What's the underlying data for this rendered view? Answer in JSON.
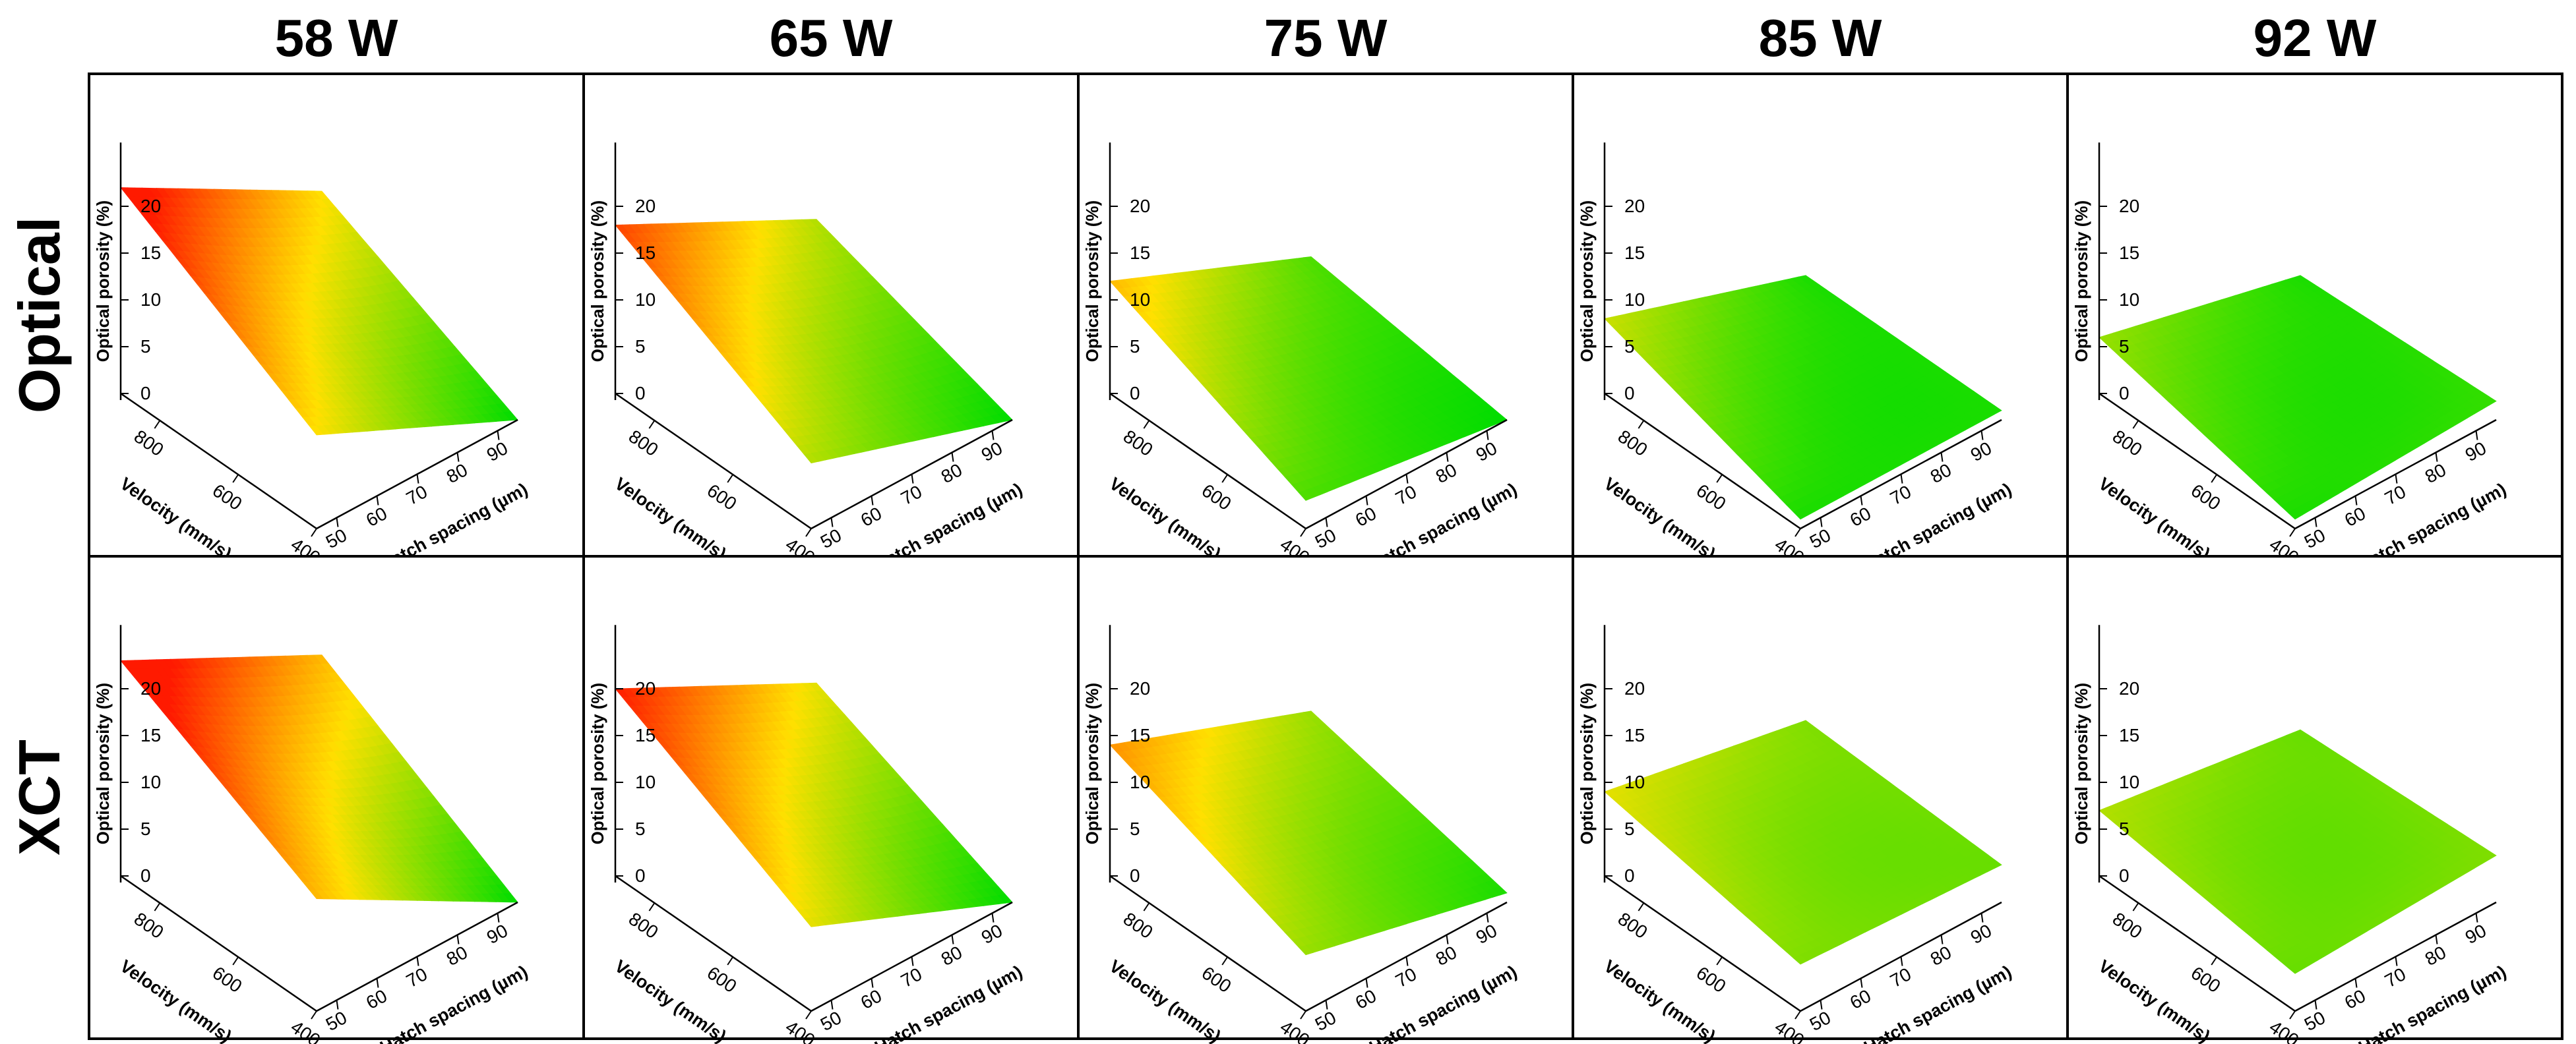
{
  "columns": [
    "58 W",
    "65 W",
    "75 W",
    "85 W",
    "92 W"
  ],
  "rows": [
    "Optical",
    "XCT"
  ],
  "colors": {
    "low": "#00dd00",
    "mid": "#ffe000",
    "high": "#ff1a00",
    "frame": "#000000"
  },
  "chart_data": {
    "type": "surface-grid",
    "x_label": "Hatch spacing (µm)",
    "x_ticks": [
      50,
      60,
      70,
      80,
      90
    ],
    "x_range": [
      45,
      95
    ],
    "y_label": "Velocity (mm/s)",
    "y_ticks": [
      400,
      600,
      800
    ],
    "y_range": [
      400,
      900
    ],
    "z_label": "Optical porosity (%)",
    "z_ticks": [
      0,
      5,
      10,
      15,
      20
    ],
    "z_range": [
      0,
      24
    ],
    "color_scale": "green-yellow-red",
    "panels": [
      {
        "row": "Optical",
        "column": "58 W",
        "corners": {
          "v900_h45": 22,
          "v900_h95": 10,
          "v400_h45": 10,
          "v400_h95": 0
        },
        "min": 0
      },
      {
        "row": "Optical",
        "column": "65 W",
        "corners": {
          "v900_h45": 18,
          "v900_h95": 7,
          "v400_h45": 7,
          "v400_h95": 0
        },
        "min": 0
      },
      {
        "row": "Optical",
        "column": "75 W",
        "corners": {
          "v900_h45": 12,
          "v900_h95": 3,
          "v400_h45": 3,
          "v400_h95": 0
        },
        "min": 0
      },
      {
        "row": "Optical",
        "column": "85 W",
        "corners": {
          "v900_h45": 8,
          "v900_h95": 1,
          "v400_h45": 1,
          "v400_h95": 1
        },
        "min": 0
      },
      {
        "row": "Optical",
        "column": "92 W",
        "corners": {
          "v900_h45": 6,
          "v900_h95": 1,
          "v400_h45": 1,
          "v400_h95": 2
        },
        "min": 0
      },
      {
        "row": "XCT",
        "column": "58 W",
        "corners": {
          "v900_h45": 23,
          "v900_h95": 12,
          "v400_h45": 12,
          "v400_h95": 0
        },
        "min": 0
      },
      {
        "row": "XCT",
        "column": "65 W",
        "corners": {
          "v900_h45": 20,
          "v900_h95": 9,
          "v400_h45": 9,
          "v400_h95": 0
        },
        "min": 0
      },
      {
        "row": "XCT",
        "column": "75 W",
        "corners": {
          "v900_h45": 14,
          "v900_h95": 6,
          "v400_h45": 6,
          "v400_h95": 1
        },
        "min": 0
      },
      {
        "row": "XCT",
        "column": "85 W",
        "corners": {
          "v900_h45": 9,
          "v900_h95": 5,
          "v400_h45": 5,
          "v400_h95": 4
        },
        "min": 0
      },
      {
        "row": "XCT",
        "column": "92 W",
        "corners": {
          "v900_h45": 7,
          "v900_h95": 4,
          "v400_h45": 4,
          "v400_h95": 5
        },
        "min": 0
      }
    ]
  }
}
